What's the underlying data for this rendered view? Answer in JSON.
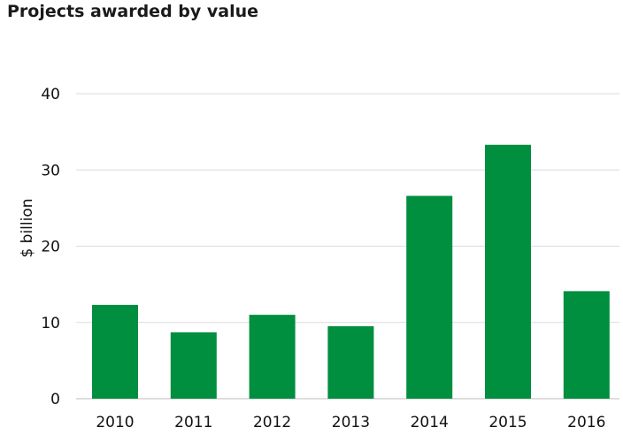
{
  "chart_data": {
    "type": "bar",
    "title": "Projects awarded by value",
    "ylabel": "$ billion",
    "xlabel": "",
    "categories": [
      "2010",
      "2011",
      "2012",
      "2013",
      "2014",
      "2015",
      "2016"
    ],
    "values": [
      12.3,
      8.7,
      11.0,
      9.5,
      26.6,
      33.3,
      14.1
    ],
    "ylim": [
      0,
      40
    ],
    "yticks": [
      0,
      10,
      20,
      30,
      40
    ],
    "grid": true,
    "bar_color": "#008e3f"
  }
}
